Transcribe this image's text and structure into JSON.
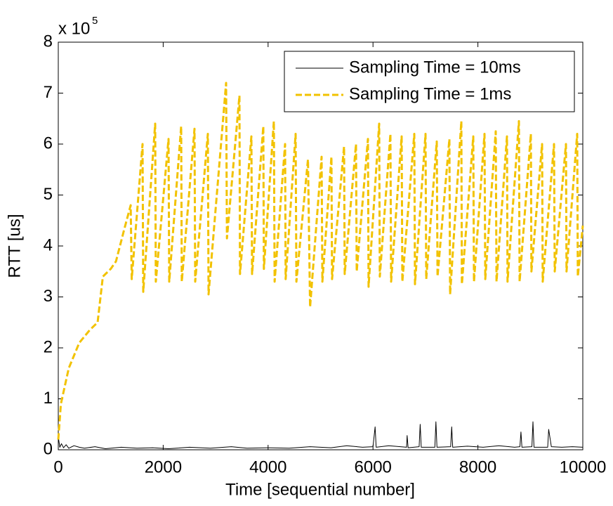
{
  "chart_data": {
    "type": "line",
    "xlabel": "Time [sequential number]",
    "ylabel": "RTT [us]",
    "y_multiplier": {
      "base": "x 10",
      "exponent": "5"
    },
    "xlim": [
      0,
      10000
    ],
    "xticks": [
      0,
      2000,
      4000,
      6000,
      8000,
      10000
    ],
    "ylim": [
      0,
      8
    ],
    "yticks": [
      0,
      1,
      2,
      3,
      4,
      5,
      6,
      7,
      8
    ],
    "legend": "upper right",
    "series": [
      {
        "name": "Sampling Time = 10ms",
        "color": "#000000",
        "dash": "solid",
        "x": [
          0,
          30,
          60,
          100,
          150,
          200,
          300,
          400,
          500,
          700,
          900,
          1200,
          1500,
          1800,
          2100,
          2500,
          2900,
          3300,
          3600,
          4000,
          4400,
          4800,
          5200,
          5500,
          5800,
          6000,
          6040,
          6060,
          6300,
          6640,
          6650,
          6670,
          6880,
          6900,
          6920,
          7180,
          7200,
          7220,
          7480,
          7500,
          7520,
          7800,
          8100,
          8400,
          8700,
          8800,
          8820,
          8840,
          9030,
          9050,
          9070,
          9330,
          9350,
          9400,
          9600,
          9800,
          10000
        ],
        "values": [
          0.25,
          0.05,
          0.12,
          0.04,
          0.1,
          0.03,
          0.08,
          0.05,
          0.03,
          0.06,
          0.02,
          0.05,
          0.03,
          0.04,
          0.02,
          0.05,
          0.03,
          0.06,
          0.03,
          0.04,
          0.03,
          0.06,
          0.04,
          0.08,
          0.05,
          0.06,
          0.45,
          0.05,
          0.08,
          0.05,
          0.28,
          0.04,
          0.06,
          0.5,
          0.05,
          0.05,
          0.55,
          0.05,
          0.06,
          0.45,
          0.05,
          0.07,
          0.05,
          0.08,
          0.05,
          0.06,
          0.35,
          0.05,
          0.06,
          0.55,
          0.05,
          0.05,
          0.4,
          0.06,
          0.05,
          0.06,
          0.05
        ]
      },
      {
        "name": "Sampling Time = 1ms",
        "color": "#f2c200",
        "dash": "dashed",
        "x": [
          0,
          50,
          200,
          400,
          600,
          750,
          850,
          1000,
          1100,
          1250,
          1380,
          1400,
          1606,
          1620,
          1847,
          1860,
          2102,
          2115,
          2343,
          2355,
          2597,
          2610,
          2851,
          2865,
          3200,
          3215,
          3454,
          3465,
          3681,
          3695,
          3909,
          3920,
          4110,
          4125,
          4324,
          4335,
          4525,
          4540,
          4760,
          4800,
          5020,
          5035,
          5207,
          5220,
          5448,
          5460,
          5676,
          5690,
          5904,
          5915,
          6118,
          6130,
          6332,
          6345,
          6546,
          6560,
          6787,
          6800,
          7001,
          7015,
          7216,
          7230,
          7456,
          7470,
          7684,
          7695,
          7912,
          7925,
          8126,
          8140,
          8340,
          8355,
          8554,
          8565,
          8782,
          8795,
          9009,
          9020,
          9224,
          9235,
          9451,
          9465,
          9679,
          9690,
          9893,
          9905,
          10000
        ],
        "values": [
          0.2,
          0.9,
          1.6,
          2.1,
          2.35,
          2.5,
          3.4,
          3.55,
          3.7,
          4.3,
          4.8,
          3.35,
          6.0,
          3.1,
          6.4,
          3.3,
          6.1,
          3.3,
          6.35,
          3.3,
          6.3,
          3.3,
          6.2,
          3.05,
          7.2,
          4.15,
          6.95,
          3.45,
          6.15,
          3.45,
          6.35,
          3.55,
          6.45,
          3.3,
          6.0,
          3.35,
          6.2,
          3.3,
          5.7,
          2.8,
          5.75,
          3.3,
          5.75,
          3.35,
          5.95,
          3.45,
          6.0,
          3.5,
          6.1,
          3.2,
          6.4,
          3.4,
          6.2,
          3.3,
          6.15,
          3.3,
          6.2,
          3.25,
          6.2,
          3.35,
          6.05,
          3.4,
          6.1,
          3.05,
          6.45,
          3.25,
          6.15,
          3.3,
          6.2,
          3.35,
          6.25,
          3.3,
          6.15,
          3.3,
          6.45,
          3.3,
          6.2,
          3.5,
          6.0,
          3.3,
          6.0,
          3.5,
          6.0,
          3.5,
          6.2,
          3.4,
          4.4
        ]
      }
    ]
  }
}
